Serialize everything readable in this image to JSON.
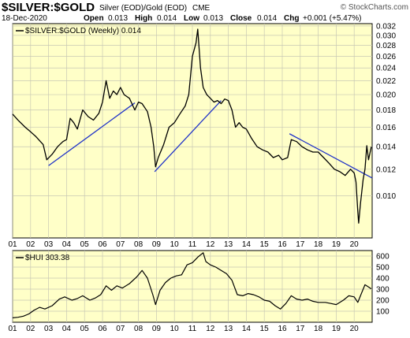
{
  "header": {
    "symbol": "$SILVER:$GOLD",
    "description": "Silver (EOD)/Gold (EOD)",
    "exchange": "CME",
    "date": "18-Dec-2020",
    "open_label": "Open",
    "open": "0.013",
    "high_label": "High",
    "high": "0.014",
    "low_label": "Low",
    "low": "0.013",
    "close_label": "Close",
    "close": "0.014",
    "chg_label": "Chg",
    "chg": "+0.001 (+5.47%)",
    "brand": "© StockCharts.com"
  },
  "colors": {
    "plot_bg": "#ffffc8",
    "grid": "#c8c8b4",
    "price_line": "#000000",
    "trendline": "#1f32c8",
    "page_bg": "#ffffff"
  },
  "chart_data": [
    {
      "type": "line",
      "legend": "$SILVER:$GOLD (Weekly) 0.014",
      "x_ticks": [
        "01",
        "02",
        "03",
        "04",
        "05",
        "06",
        "07",
        "08",
        "09",
        "10",
        "11",
        "12",
        "13",
        "14",
        "15",
        "16",
        "17",
        "18",
        "19",
        "20"
      ],
      "xlim": [
        2001.0,
        2021.0
      ],
      "y_scale": "log",
      "ylim": [
        0.0075,
        0.0325
      ],
      "y_ticks": [
        0.01,
        0.012,
        0.014,
        0.016,
        0.018,
        0.02,
        0.022,
        0.024,
        0.026,
        0.028,
        0.03,
        0.032
      ],
      "y_tick_labels": [
        "0.010",
        "0.012",
        "0.014",
        "0.016",
        "0.018",
        "0.020",
        "0.022",
        "0.024",
        "0.026",
        "0.028",
        "0.030",
        "0.032"
      ],
      "grid": true,
      "series": [
        {
          "x": [
            2001.0,
            2001.3,
            2001.7,
            2002.0,
            2002.3,
            2002.7,
            2002.9,
            2003.2,
            2003.5,
            2003.8,
            2004.0,
            2004.2,
            2004.4,
            2004.6,
            2004.9,
            2005.2,
            2005.5,
            2005.8,
            2006.0,
            2006.2,
            2006.4,
            2006.6,
            2006.8,
            2007.0,
            2007.2,
            2007.5,
            2007.8,
            2008.0,
            2008.2,
            2008.5,
            2008.7,
            2008.85,
            2008.95,
            2009.1,
            2009.4,
            2009.7,
            2010.0,
            2010.3,
            2010.6,
            2010.8,
            2011.0,
            2011.2,
            2011.3,
            2011.45,
            2011.6,
            2011.8,
            2012.0,
            2012.2,
            2012.4,
            2012.6,
            2012.8,
            2013.0,
            2013.2,
            2013.4,
            2013.6,
            2013.8,
            2014.0,
            2014.3,
            2014.6,
            2014.9,
            2015.2,
            2015.5,
            2015.8,
            2016.0,
            2016.3,
            2016.5,
            2016.8,
            2017.1,
            2017.4,
            2017.7,
            2018.0,
            2018.3,
            2018.6,
            2018.9,
            2019.2,
            2019.5,
            2019.8,
            2020.0,
            2020.1,
            2020.2,
            2020.25,
            2020.35,
            2020.5,
            2020.6,
            2020.7,
            2020.8,
            2020.95
          ],
          "y": [
            0.0175,
            0.0168,
            0.016,
            0.0155,
            0.015,
            0.0142,
            0.0128,
            0.0133,
            0.014,
            0.0145,
            0.0147,
            0.017,
            0.0165,
            0.0158,
            0.018,
            0.0172,
            0.0168,
            0.0176,
            0.019,
            0.022,
            0.0195,
            0.0205,
            0.02,
            0.021,
            0.02,
            0.0195,
            0.018,
            0.019,
            0.0188,
            0.0178,
            0.016,
            0.014,
            0.0122,
            0.013,
            0.0142,
            0.016,
            0.0165,
            0.0175,
            0.0185,
            0.02,
            0.026,
            0.0285,
            0.0313,
            0.024,
            0.021,
            0.02,
            0.0195,
            0.019,
            0.0192,
            0.0188,
            0.0194,
            0.0192,
            0.018,
            0.016,
            0.0165,
            0.016,
            0.0158,
            0.0148,
            0.014,
            0.0137,
            0.0135,
            0.013,
            0.0132,
            0.0128,
            0.013,
            0.0147,
            0.0145,
            0.014,
            0.0137,
            0.0135,
            0.0135,
            0.013,
            0.0125,
            0.012,
            0.0118,
            0.0115,
            0.012,
            0.0117,
            0.011,
            0.009,
            0.0083,
            0.0095,
            0.0112,
            0.012,
            0.0141,
            0.0128,
            0.014
          ]
        }
      ],
      "trendlines": [
        {
          "x": [
            2003.0,
            2007.8
          ],
          "y": [
            0.0123,
            0.0189
          ]
        },
        {
          "x": [
            2008.9,
            2012.6
          ],
          "y": [
            0.0118,
            0.0192
          ]
        },
        {
          "x": [
            2016.4,
            2021.0
          ],
          "y": [
            0.0153,
            0.0113
          ]
        }
      ]
    },
    {
      "type": "line",
      "legend": "$HUI 303.38",
      "x_ticks": [
        "01",
        "02",
        "03",
        "04",
        "05",
        "06",
        "07",
        "08",
        "09",
        "10",
        "11",
        "12",
        "13",
        "14",
        "15",
        "16",
        "17",
        "18",
        "19",
        "20"
      ],
      "xlim": [
        2001.0,
        2021.0
      ],
      "ylim": [
        0,
        650
      ],
      "y_ticks": [
        100,
        200,
        300,
        400,
        500,
        600
      ],
      "y_tick_labels": [
        "100",
        "200",
        "300",
        "400",
        "500",
        "600"
      ],
      "grid": true,
      "series": [
        {
          "x": [
            2001.0,
            2001.3,
            2001.6,
            2001.9,
            2002.2,
            2002.5,
            2002.8,
            2003.2,
            2003.6,
            2003.9,
            2004.3,
            2004.6,
            2004.9,
            2005.3,
            2005.6,
            2005.9,
            2006.2,
            2006.5,
            2006.8,
            2007.1,
            2007.5,
            2007.9,
            2008.2,
            2008.5,
            2008.8,
            2008.95,
            2009.2,
            2009.5,
            2009.8,
            2010.1,
            2010.4,
            2010.7,
            2011.0,
            2011.3,
            2011.6,
            2011.75,
            2012.0,
            2012.3,
            2012.6,
            2012.9,
            2013.2,
            2013.5,
            2013.8,
            2014.1,
            2014.4,
            2014.7,
            2015.0,
            2015.3,
            2015.6,
            2015.9,
            2016.2,
            2016.5,
            2016.8,
            2017.1,
            2017.4,
            2017.7,
            2018.0,
            2018.4,
            2018.7,
            2019.0,
            2019.4,
            2019.7,
            2020.0,
            2020.2,
            2020.4,
            2020.6,
            2020.8,
            2020.95
          ],
          "y": [
            40,
            45,
            55,
            75,
            110,
            135,
            120,
            150,
            210,
            230,
            200,
            215,
            240,
            200,
            220,
            250,
            330,
            290,
            330,
            310,
            350,
            410,
            470,
            400,
            250,
            160,
            290,
            360,
            400,
            420,
            430,
            520,
            540,
            590,
            630,
            550,
            520,
            500,
            470,
            440,
            380,
            250,
            240,
            260,
            250,
            230,
            200,
            190,
            150,
            120,
            170,
            240,
            210,
            200,
            210,
            190,
            180,
            180,
            170,
            160,
            200,
            240,
            230,
            180,
            260,
            340,
            320,
            303
          ]
        }
      ]
    }
  ]
}
